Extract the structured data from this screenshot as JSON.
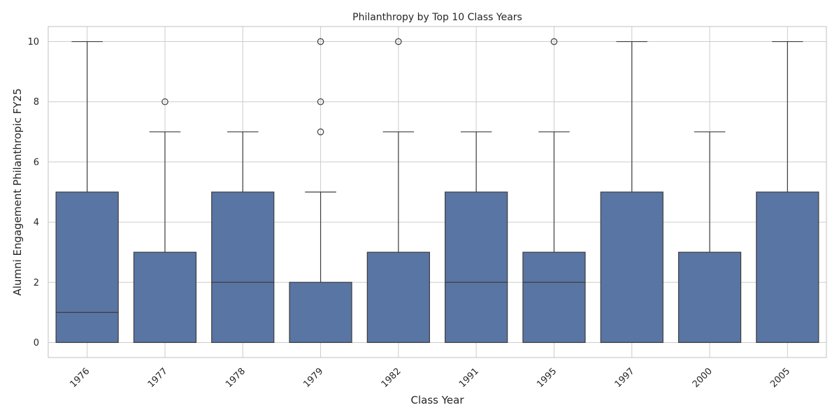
{
  "chart_data": {
    "type": "box",
    "title": "Philanthropy by Top 10 Class Years",
    "xlabel": "Class Year",
    "ylabel": "Alumni Engagement Philanthropic FY25",
    "ylim": [
      -0.5,
      10.5
    ],
    "yticks": [
      0,
      2,
      4,
      6,
      8,
      10
    ],
    "grid": true,
    "box_color": "#5975a4",
    "line_color": "#3d3d3d",
    "categories": [
      "1976",
      "1977",
      "1978",
      "1979",
      "1982",
      "1991",
      "1995",
      "1997",
      "2000",
      "2005"
    ],
    "boxes": [
      {
        "whislo": 0,
        "q1": 0,
        "med": 1,
        "q3": 5,
        "whishi": 10,
        "fliers": []
      },
      {
        "whislo": 0,
        "q1": 0,
        "med": 0,
        "q3": 3,
        "whishi": 7,
        "fliers": [
          8
        ]
      },
      {
        "whislo": 0,
        "q1": 0,
        "med": 2,
        "q3": 5,
        "whishi": 7,
        "fliers": []
      },
      {
        "whislo": 0,
        "q1": 0,
        "med": 0,
        "q3": 2,
        "whishi": 5,
        "fliers": [
          7,
          8,
          10
        ]
      },
      {
        "whislo": 0,
        "q1": 0,
        "med": 0,
        "q3": 3,
        "whishi": 7,
        "fliers": [
          10
        ]
      },
      {
        "whislo": 0,
        "q1": 0,
        "med": 2,
        "q3": 5,
        "whishi": 7,
        "fliers": []
      },
      {
        "whislo": 0,
        "q1": 0,
        "med": 2,
        "q3": 3,
        "whishi": 7,
        "fliers": [
          10
        ]
      },
      {
        "whislo": 0,
        "q1": 0,
        "med": 0,
        "q3": 5,
        "whishi": 10,
        "fliers": []
      },
      {
        "whislo": 0,
        "q1": 0,
        "med": 0,
        "q3": 3,
        "whishi": 7,
        "fliers": []
      },
      {
        "whislo": 0,
        "q1": 0,
        "med": 0,
        "q3": 5,
        "whishi": 10,
        "fliers": []
      }
    ]
  }
}
